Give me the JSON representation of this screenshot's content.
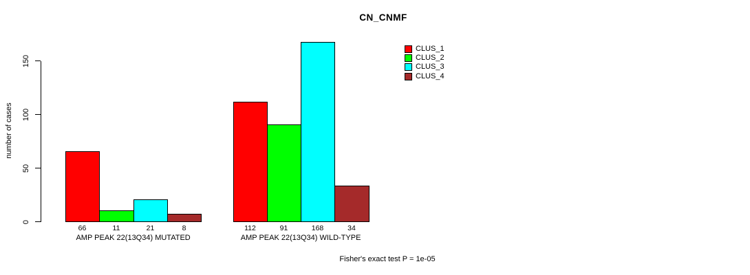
{
  "page": {
    "background": "#ffffff"
  },
  "chart_data": {
    "type": "bar",
    "title": "CN_CNMF",
    "ylabel": "number of cases",
    "xlabel": "",
    "ylim": [
      0,
      150
    ],
    "yticks": [
      0,
      50,
      100,
      150
    ],
    "grid": false,
    "categories": [
      "AMP PEAK 22(13Q34) MUTATED",
      "AMP PEAK 22(13Q34) WILD-TYPE"
    ],
    "series": [
      {
        "name": "CLUS_1",
        "color": "#ff0000",
        "values": [
          66,
          112
        ]
      },
      {
        "name": "CLUS_2",
        "color": "#00ff00",
        "values": [
          11,
          91
        ]
      },
      {
        "name": "CLUS_3",
        "color": "#00ffff",
        "values": [
          21,
          168
        ]
      },
      {
        "name": "CLUS_4",
        "color": "#a52a2a",
        "values": [
          8,
          34
        ]
      }
    ],
    "legend": {
      "position": "top-right",
      "entries": [
        "CLUS_1",
        "CLUS_2",
        "CLUS_3",
        "CLUS_4"
      ]
    },
    "annotation": "Fisher's exact test P = 1e-05"
  },
  "colors": {
    "bar_border": "#000000",
    "axis": "#000000",
    "text": "#000000",
    "background": "#ffffff"
  }
}
